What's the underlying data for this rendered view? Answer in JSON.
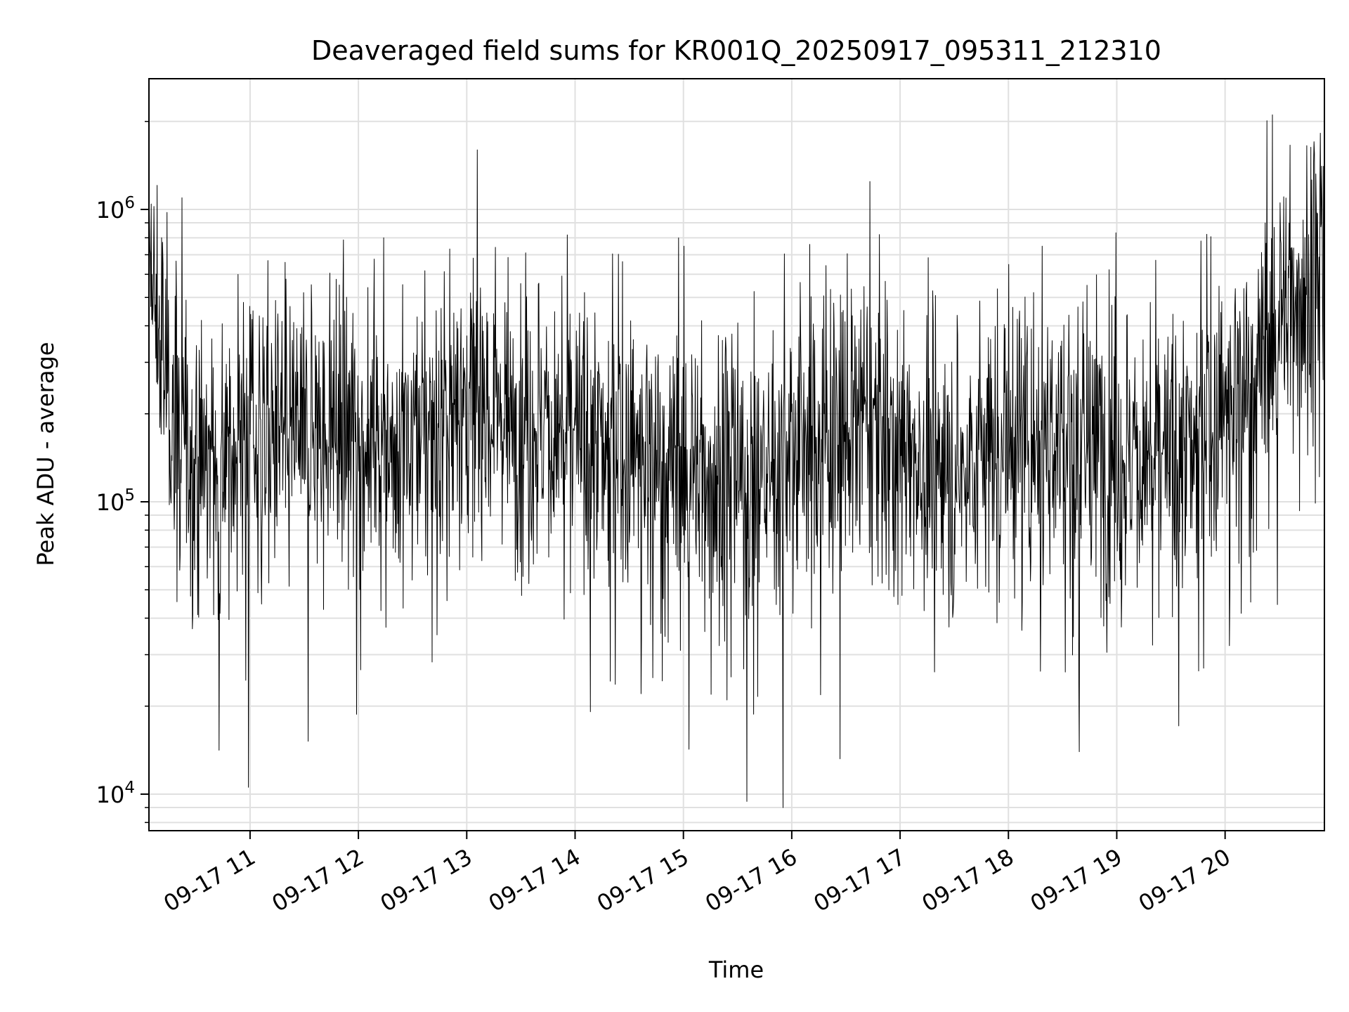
{
  "chart_data": {
    "type": "line",
    "title": "Deaveraged field sums for KR001Q_20250917_095311_212310",
    "xlabel": "Time",
    "ylabel": "Peak ADU - average",
    "yscale": "log",
    "ylim": [
      7500,
      2800000
    ],
    "xlim": [
      "2025-09-17 10:04",
      "2025-09-17 20:55"
    ],
    "grid": true,
    "x_ticks": [
      {
        "label": "09-17 11",
        "value": "2025-09-17 11:00"
      },
      {
        "label": "09-17 12",
        "value": "2025-09-17 12:00"
      },
      {
        "label": "09-17 13",
        "value": "2025-09-17 13:00"
      },
      {
        "label": "09-17 14",
        "value": "2025-09-17 14:00"
      },
      {
        "label": "09-17 15",
        "value": "2025-09-17 15:00"
      },
      {
        "label": "09-17 16",
        "value": "2025-09-17 16:00"
      },
      {
        "label": "09-17 17",
        "value": "2025-09-17 17:00"
      },
      {
        "label": "09-17 18",
        "value": "2025-09-17 18:00"
      },
      {
        "label": "09-17 19",
        "value": "2025-09-17 19:00"
      },
      {
        "label": "09-17 20",
        "value": "2025-09-17 20:00"
      }
    ],
    "y_ticks": [
      {
        "base": "10",
        "exp": "4",
        "value": 10000
      },
      {
        "base": "10",
        "exp": "5",
        "value": 100000
      },
      {
        "base": "10",
        "exp": "6",
        "value": 1000000
      }
    ],
    "series": [
      {
        "color": "#000000",
        "x": [
          "2025-09-17 10:04",
          "2025-09-17 10:10",
          "2025-09-17 10:20",
          "2025-09-17 10:30",
          "2025-09-17 10:40",
          "2025-09-17 10:50",
          "2025-09-17 11:00",
          "2025-09-17 11:15",
          "2025-09-17 11:30",
          "2025-09-17 11:40",
          "2025-09-17 11:45",
          "2025-09-17 12:00",
          "2025-09-17 12:15",
          "2025-09-17 12:30",
          "2025-09-17 12:45",
          "2025-09-17 12:55",
          "2025-09-17 13:00",
          "2025-09-17 13:15",
          "2025-09-17 13:25",
          "2025-09-17 13:30",
          "2025-09-17 13:45",
          "2025-09-17 14:00",
          "2025-09-17 14:15",
          "2025-09-17 14:30",
          "2025-09-17 14:45",
          "2025-09-17 15:00",
          "2025-09-17 15:15",
          "2025-09-17 15:30",
          "2025-09-17 15:45",
          "2025-09-17 16:00",
          "2025-09-17 16:15",
          "2025-09-17 16:30",
          "2025-09-17 16:45",
          "2025-09-17 17:00",
          "2025-09-17 17:15",
          "2025-09-17 17:30",
          "2025-09-17 17:45",
          "2025-09-17 18:00",
          "2025-09-17 18:15",
          "2025-09-17 18:30",
          "2025-09-17 18:45",
          "2025-09-17 19:00",
          "2025-09-17 19:15",
          "2025-09-17 19:30",
          "2025-09-17 19:45",
          "2025-09-17 20:00",
          "2025-09-17 20:15",
          "2025-09-17 20:25",
          "2025-09-17 20:35",
          "2025-09-17 20:45",
          "2025-09-17 20:55"
        ],
        "y": [
          600000,
          350000,
          160000,
          140000,
          130000,
          150000,
          165000,
          170000,
          175000,
          160000,
          185000,
          175000,
          160000,
          170000,
          180000,
          200000,
          205000,
          220000,
          200000,
          190000,
          180000,
          160000,
          150000,
          145000,
          140000,
          130000,
          125000,
          120000,
          125000,
          150000,
          165000,
          175000,
          180000,
          160000,
          130000,
          120000,
          150000,
          165000,
          170000,
          160000,
          150000,
          145000,
          140000,
          130000,
          160000,
          200000,
          260000,
          350000,
          500000,
          550000,
          600000
        ]
      }
    ]
  }
}
